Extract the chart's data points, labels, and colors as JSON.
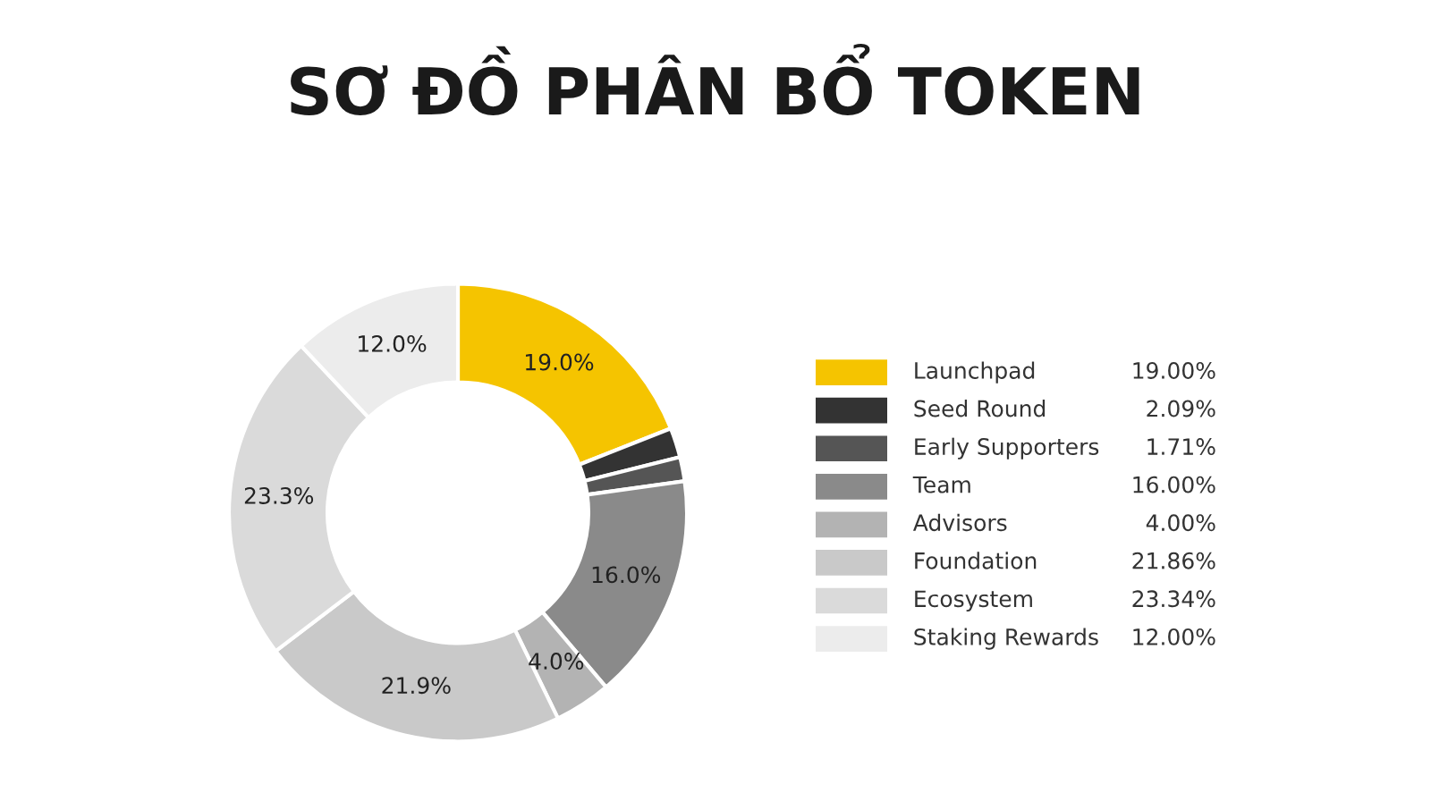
{
  "chart_data": {
    "type": "donut",
    "title": "SƠ ĐỒ PHÂN BỔ TOKEN",
    "categories": [
      "Launchpad",
      "Seed Round",
      "Early Supporters",
      "Team",
      "Advisors",
      "Foundation",
      "Ecosystem",
      "Staking Rewards"
    ],
    "values": [
      19.0,
      2.09,
      1.71,
      16.0,
      4.0,
      21.86,
      23.34,
      12.0
    ],
    "colors": [
      "#f5c400",
      "#333333",
      "#555555",
      "#8a8a8a",
      "#b3b3b3",
      "#c9c9c9",
      "#dadada",
      "#ececec"
    ],
    "value_labels": [
      "19.0%",
      null,
      null,
      "16.0%",
      "4.0%",
      "21.9%",
      "23.3%",
      "12.0%"
    ],
    "annotations": [
      {
        "text": "19.00%",
        "x": "Launchpad"
      },
      {
        "text": "2.09%",
        "x": "Seed Round"
      },
      {
        "text": "1.71%",
        "x": "Early Supporters"
      },
      {
        "text": "16.00%",
        "x": "Team"
      },
      {
        "text": "4.00%",
        "x": "Advisors"
      },
      {
        "text": "21.86%",
        "x": "Foundation"
      },
      {
        "text": "23.34%",
        "x": "Ecosystem"
      },
      {
        "text": "12.00%",
        "x": "Staking Rewards"
      }
    ],
    "legend": "right"
  }
}
